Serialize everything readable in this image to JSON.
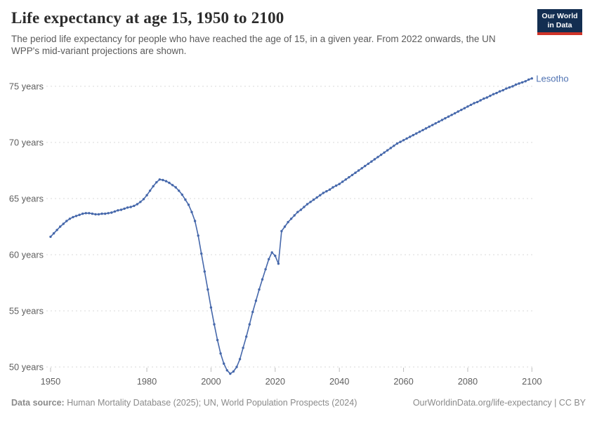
{
  "header": {
    "title": "Life expectancy at age 15, 1950 to 2100",
    "subtitle": "The period life expectancy for people who have reached the age of 15, in a given year. From 2022 onwards, the UN WPP's mid-variant projections are shown.",
    "logo": {
      "line1": "Our World",
      "line2": "in Data",
      "bg_color": "#132e51",
      "accent_color": "#cf3328"
    }
  },
  "footer": {
    "source_label": "Data source:",
    "source_text": " Human Mortality Database (2025); UN, World Population Prospects (2024)",
    "credit": "OurWorldinData.org/life-expectancy | CC BY"
  },
  "chart_data": {
    "type": "line",
    "title": "Life expectancy at age 15, 1950 to 2100",
    "entity": "Lesotho",
    "unit": "years",
    "x_start": 1950,
    "x_step": 1,
    "xlim": [
      1950,
      2100
    ],
    "ylim": [
      49.4,
      76
    ],
    "x_ticks": [
      1950,
      1980,
      2000,
      2020,
      2040,
      2060,
      2080,
      2100
    ],
    "y_ticks": [
      50,
      55,
      60,
      65,
      70,
      75
    ],
    "y_tick_suffix": " years",
    "grid": "horizontal-dashed",
    "legend_position": "end-of-line-label",
    "projection_from": 2022,
    "line_color": "#4668ab",
    "entity_label_color": "#4f72b2",
    "values": [
      61.6,
      61.9,
      62.2,
      62.5,
      62.75,
      63.0,
      63.2,
      63.35,
      63.45,
      63.55,
      63.65,
      63.7,
      63.7,
      63.65,
      63.6,
      63.6,
      63.65,
      63.65,
      63.7,
      63.75,
      63.85,
      63.95,
      64.0,
      64.1,
      64.2,
      64.25,
      64.35,
      64.5,
      64.7,
      64.95,
      65.3,
      65.7,
      66.1,
      66.45,
      66.7,
      66.65,
      66.55,
      66.4,
      66.2,
      66.0,
      65.7,
      65.35,
      64.9,
      64.45,
      63.8,
      63.0,
      61.7,
      60.1,
      58.5,
      56.9,
      55.3,
      53.8,
      52.4,
      51.2,
      50.3,
      49.7,
      49.4,
      49.6,
      50.0,
      50.7,
      51.7,
      52.7,
      53.8,
      54.9,
      55.9,
      56.9,
      57.8,
      58.7,
      59.6,
      60.2,
      59.9,
      59.2,
      62.1,
      62.5,
      62.9,
      63.2,
      63.5,
      63.8,
      64.0,
      64.25,
      64.5,
      64.7,
      64.9,
      65.1,
      65.3,
      65.5,
      65.65,
      65.8,
      66.0,
      66.15,
      66.3,
      66.5,
      66.7,
      66.9,
      67.1,
      67.3,
      67.5,
      67.7,
      67.9,
      68.1,
      68.3,
      68.5,
      68.7,
      68.9,
      69.1,
      69.3,
      69.5,
      69.7,
      69.9,
      70.05,
      70.2,
      70.35,
      70.5,
      70.65,
      70.8,
      70.95,
      71.1,
      71.25,
      71.4,
      71.55,
      71.7,
      71.85,
      72.0,
      72.15,
      72.3,
      72.45,
      72.6,
      72.75,
      72.9,
      73.05,
      73.2,
      73.35,
      73.5,
      73.6,
      73.75,
      73.9,
      74.0,
      74.15,
      74.3,
      74.4,
      74.55,
      74.65,
      74.8,
      74.9,
      75.0,
      75.15,
      75.25,
      75.35,
      75.45,
      75.6,
      75.7
    ]
  }
}
